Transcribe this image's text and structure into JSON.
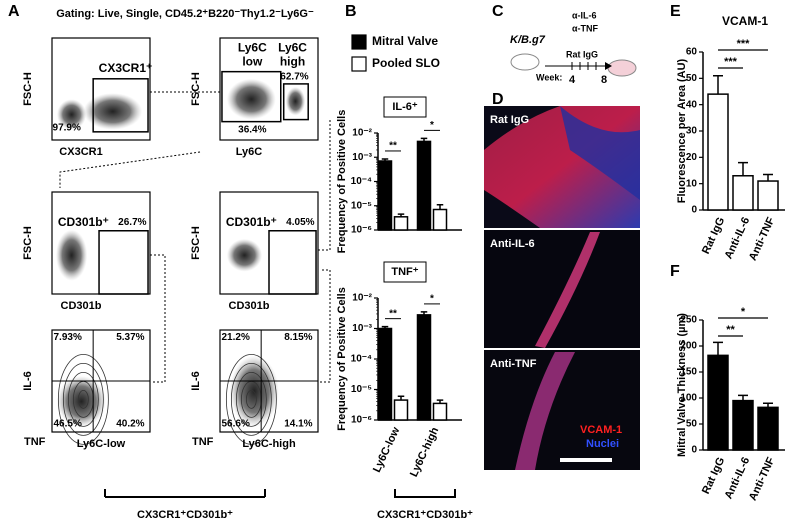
{
  "figure": {
    "panel_letters": [
      "A",
      "B",
      "C",
      "D",
      "E",
      "F"
    ],
    "gating": {
      "title": "Gating: Live, Single, CD45.2⁺B220⁻Thy1.2⁻Ly6G⁻",
      "plots": [
        {
          "y_label": "FSC-H",
          "x_label": "CX3CR1",
          "texts": [
            "CX3CR1⁺",
            "97.9%"
          ]
        },
        {
          "y_label": "FSC-H",
          "x_label": "Ly6C",
          "texts": [
            "Ly6C",
            "low",
            "Ly6C",
            "high",
            "62.7%",
            "36.4%"
          ]
        },
        {
          "y_label": "FSC-H",
          "x_label": "CD301b",
          "texts": [
            "CD301b⁺",
            "26.7%"
          ]
        },
        {
          "y_label": "FSC-H",
          "x_label": "CD301b",
          "texts": [
            "CD301b⁺",
            "4.05%"
          ]
        },
        {
          "y_label": "IL-6",
          "x_label": "Ly6C-low",
          "corner_label": "TNF",
          "texts": [
            "7.93%",
            "5.37%",
            "46.5%",
            "40.2%"
          ]
        },
        {
          "y_label": "IL-6",
          "x_label": "Ly6C-high",
          "corner_label": "TNF",
          "texts": [
            "21.2%",
            "8.15%",
            "56.6%",
            "14.1%"
          ]
        }
      ],
      "bracket_label": "CX3CR1⁺CD301b⁺"
    },
    "schematic": {
      "strain": "K/B.g7",
      "treatments": [
        "α-IL-6",
        "α-TNF",
        "Rat IgG"
      ],
      "week_label": "Week:",
      "weeks": [
        "4",
        "8"
      ]
    },
    "images": {
      "labels": [
        "Rat IgG",
        "Anti-IL-6",
        "Anti-TNF"
      ],
      "stains": [
        "VCAM-1",
        "Nuclei"
      ]
    }
  },
  "chart_data": [
    {
      "type": "bar",
      "log_scale": true,
      "annotation": "IL-6⁺",
      "ylabel": "Frequency of Positive Cells",
      "ylim": [
        1e-06,
        0.01
      ],
      "yticks": [
        {
          "value": 1e-06,
          "label": "10⁻⁶"
        },
        {
          "value": 1e-05,
          "label": "10⁻⁵"
        },
        {
          "value": 0.0001,
          "label": "10⁻⁴"
        },
        {
          "value": 0.001,
          "label": "10⁻³"
        },
        {
          "value": 0.01,
          "label": "10⁻²"
        }
      ],
      "categories": [
        null,
        null
      ],
      "series": [
        {
          "name": "Mitral Valve",
          "color": "#000000",
          "values": [
            0.0007,
            0.0045
          ],
          "errors": [
            0.00015,
            0.0015
          ]
        },
        {
          "name": "Pooled SLO",
          "color": "#ffffff",
          "values": [
            3.5e-06,
            7e-06
          ],
          "errors": [
            1e-06,
            4e-06
          ]
        }
      ],
      "significance": [
        "**",
        "*"
      ],
      "legend": "top"
    },
    {
      "type": "bar",
      "log_scale": true,
      "annotation": "TNF⁺",
      "ylabel": "Frequency of Positive Cells",
      "ylim": [
        1e-06,
        0.01
      ],
      "yticks": [
        {
          "value": 1e-06,
          "label": "10⁻⁶"
        },
        {
          "value": 1e-05,
          "label": "10⁻⁵"
        },
        {
          "value": 0.0001,
          "label": "10⁻⁴"
        },
        {
          "value": 0.001,
          "label": "10⁻³"
        },
        {
          "value": 0.01,
          "label": "10⁻²"
        }
      ],
      "categories": [
        "Ly6C-low",
        "Ly6C-high"
      ],
      "series": [
        {
          "color": "#000000",
          "values": [
            0.001,
            0.0028
          ],
          "errors": [
            0.00015,
            0.0007
          ]
        },
        {
          "color": "#ffffff",
          "values": [
            4.5e-06,
            3.5e-06
          ],
          "errors": [
            1.5e-06,
            1e-06
          ]
        }
      ],
      "significance": [
        "**",
        "*"
      ],
      "xlabel": "CX3CR1⁺CD301b⁺"
    },
    {
      "type": "bar",
      "title": "VCAM-1",
      "ylabel": "Fluorescence per Area (AU)",
      "ylim": [
        0,
        60
      ],
      "yticks": [
        0,
        10,
        20,
        30,
        40,
        50,
        60
      ],
      "categories": [
        "Rat IgG",
        "Anti-IL-6",
        "Anti-TNF"
      ],
      "color": "#ffffff",
      "values": [
        44,
        13,
        11
      ],
      "errors": [
        7,
        5,
        2.5
      ],
      "comparisons": [
        {
          "label": "***",
          "pair": [
            0,
            2
          ]
        },
        {
          "label": "***",
          "pair": [
            0,
            1
          ]
        }
      ]
    },
    {
      "type": "bar",
      "ylabel": "Mitral Valve Thickness (µm)",
      "ylim": [
        0,
        250
      ],
      "yticks": [
        0,
        50,
        100,
        150,
        200,
        250
      ],
      "categories": [
        "Rat IgG",
        "Anti-IL-6",
        "Anti-TNF"
      ],
      "color": "#000000",
      "values": [
        182,
        95,
        82
      ],
      "errors": [
        25,
        10,
        8
      ],
      "comparisons": [
        {
          "label": "*",
          "pair": [
            0,
            2
          ]
        },
        {
          "label": "**",
          "pair": [
            0,
            1
          ]
        }
      ]
    }
  ]
}
